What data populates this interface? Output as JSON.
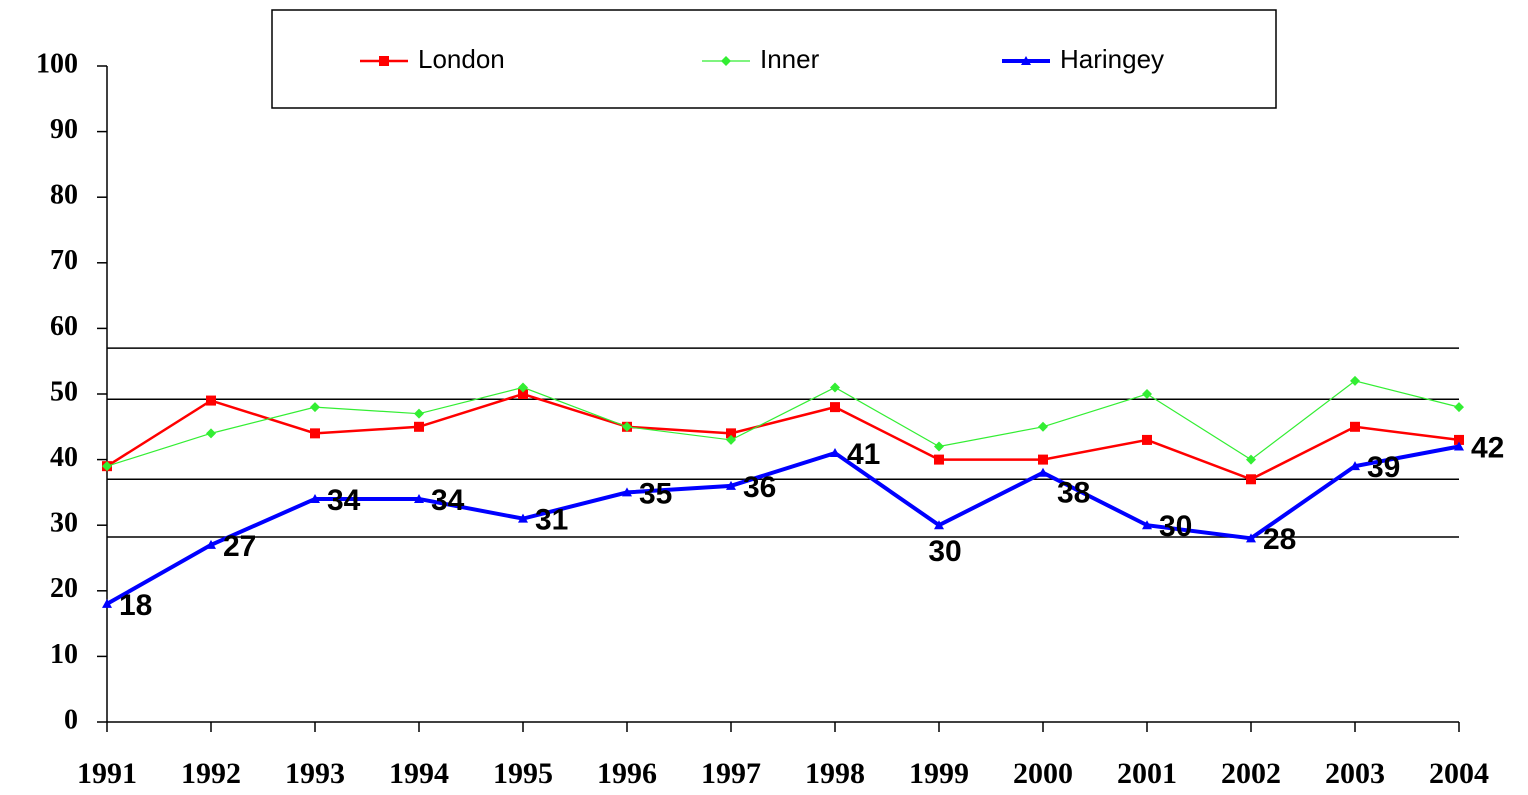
{
  "chart_data": {
    "type": "line",
    "categories": [
      "1991",
      "1992",
      "1993",
      "1994",
      "1995",
      "1996",
      "1997",
      "1998",
      "1999",
      "2000",
      "2001",
      "2002",
      "2003",
      "2004"
    ],
    "series": [
      {
        "name": "London",
        "color": "#ff0000",
        "marker": "square",
        "values": [
          39,
          49,
          44,
          45,
          50,
          45,
          44,
          48,
          40,
          40,
          43,
          37,
          45,
          43
        ]
      },
      {
        "name": "Inner",
        "color": "#33ee33",
        "marker": "diamond",
        "values": [
          39,
          44,
          48,
          47,
          51,
          45,
          43,
          51,
          42,
          45,
          50,
          40,
          52,
          48
        ]
      },
      {
        "name": "Haringey",
        "color": "#0000ff",
        "marker": "triangle",
        "data_labels": true,
        "values": [
          18,
          27,
          34,
          34,
          31,
          35,
          36,
          41,
          30,
          38,
          30,
          28,
          39,
          42
        ]
      }
    ],
    "ylim": [
      0,
      100
    ],
    "yticks": [
      0,
      10,
      20,
      30,
      40,
      50,
      60,
      70,
      80,
      90,
      100
    ],
    "reference_lines": [
      57,
      49.2,
      37,
      28.2
    ],
    "legend": "top"
  }
}
